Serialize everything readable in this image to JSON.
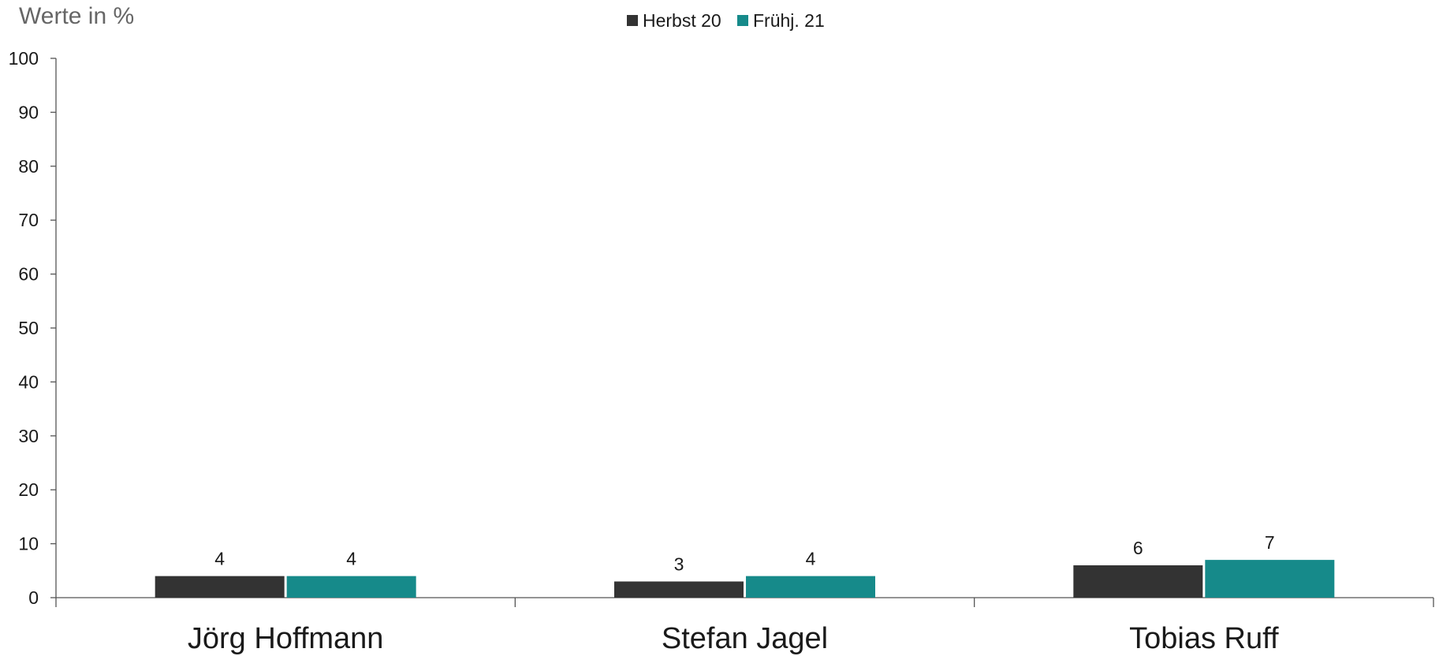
{
  "chart_data": {
    "type": "bar",
    "ylabel": "Werte in %",
    "ylim": [
      0,
      100
    ],
    "yticks": [
      0,
      10,
      20,
      30,
      40,
      50,
      60,
      70,
      80,
      90,
      100
    ],
    "categories": [
      "Jörg Hoffmann",
      "Stefan Jagel",
      "Tobias Ruff"
    ],
    "series": [
      {
        "name": "Herbst 20",
        "color": "#333333",
        "values": [
          4,
          3,
          6
        ],
        "labels": [
          "4",
          "3",
          "6"
        ]
      },
      {
        "name": "Frühj. 21",
        "color": "#168a8a",
        "values": [
          4,
          4,
          7
        ],
        "labels": [
          "4",
          "4",
          "7"
        ]
      }
    ],
    "legend": "top-center",
    "grid": false
  }
}
